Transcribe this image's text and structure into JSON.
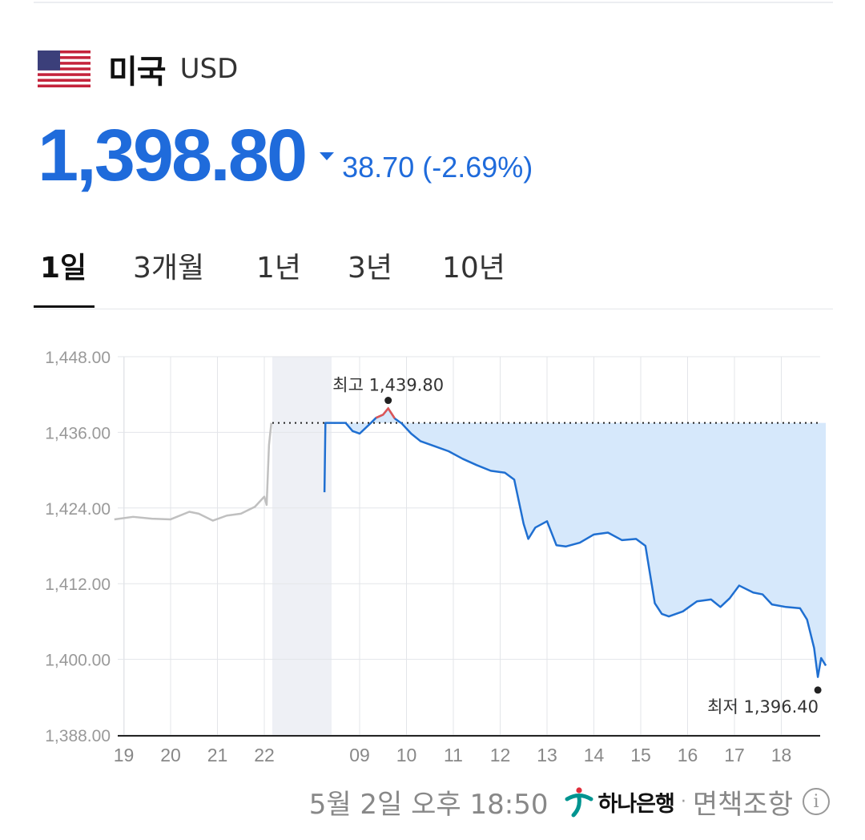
{
  "header": {
    "flag_icon": "us-flag-icon",
    "country": "미국",
    "code": "USD"
  },
  "quote": {
    "price": "1,398.80",
    "direction": "down",
    "change": "38.70 (-2.69%)",
    "color": "#1f6bdb"
  },
  "tabs": [
    {
      "label": "1일",
      "active": true
    },
    {
      "label": "3개월",
      "active": false
    },
    {
      "label": "1년",
      "active": false
    },
    {
      "label": "3년",
      "active": false
    },
    {
      "label": "10년",
      "active": false
    }
  ],
  "chart_data": {
    "type": "line",
    "ylim": [
      1388,
      1448
    ],
    "yticks": [
      "1,448.00",
      "1,436.00",
      "1,424.00",
      "1,412.00",
      "1,400.00",
      "1,388.00"
    ],
    "ytick_values": [
      1448,
      1436,
      1424,
      1412,
      1400,
      1388
    ],
    "xticks": [
      "19",
      "20",
      "21",
      "22",
      "09",
      "10",
      "11",
      "12",
      "13",
      "14",
      "15",
      "16",
      "17",
      "18"
    ],
    "xtick_hours": [
      -5,
      -4,
      -3,
      -2,
      9,
      10,
      11,
      12,
      13,
      14,
      15,
      16,
      17,
      18
    ],
    "night_icon": "moon-icon",
    "previous_close": 1437.5,
    "grid": true,
    "colors": {
      "today": "#1f6fd1",
      "previous": "#c0c0c0",
      "above_close": "#e05555",
      "fill": "#d6e8fb"
    },
    "annotations": {
      "high": {
        "label": "최고 1,439.80",
        "hour": 9.61,
        "value": 1439.8
      },
      "low": {
        "label": "최저 1,396.40",
        "hour": 18.78,
        "value": 1396.4
      }
    },
    "series": [
      {
        "x": [
          -5.2,
          -4.8,
          -4.4,
          -4.0,
          -3.6,
          -3.4,
          -3.1,
          -2.8,
          -2.5,
          -2.2,
          -2.0,
          -1.95,
          -1.9,
          -1.85
        ],
        "y": [
          1422.2,
          1422.6,
          1422.3,
          1422.2,
          1423.4,
          1423.1,
          1422.0,
          1422.8,
          1423.1,
          1424.2,
          1425.8,
          1424.5,
          1434.0,
          1437.5
        ]
      },
      {
        "x": [
          8.25,
          8.27,
          8.5,
          8.7,
          8.85,
          9.0,
          9.2,
          9.35,
          9.5,
          9.61,
          9.75,
          9.9,
          10.1,
          10.3,
          10.6,
          10.9,
          11.2,
          11.5,
          11.8,
          12.1,
          12.3,
          12.5,
          12.6,
          12.75,
          13.0,
          13.2,
          13.4,
          13.7,
          14.0,
          14.3,
          14.6,
          14.9,
          15.1,
          15.3,
          15.45,
          15.6,
          15.9,
          16.2,
          16.5,
          16.7,
          16.9,
          17.1,
          17.4,
          17.6,
          17.8,
          18.1,
          18.4,
          18.55,
          18.7,
          18.78,
          18.85,
          18.95
        ],
        "y": [
          1426.5,
          1437.5,
          1437.5,
          1437.5,
          1436.2,
          1435.8,
          1437.2,
          1438.3,
          1438.8,
          1439.8,
          1438.2,
          1437.4,
          1435.8,
          1434.6,
          1433.8,
          1433.0,
          1431.8,
          1430.8,
          1429.9,
          1429.6,
          1428.5,
          1421.5,
          1419.1,
          1420.9,
          1421.9,
          1418.1,
          1417.9,
          1418.5,
          1419.8,
          1420.1,
          1418.9,
          1419.1,
          1418.0,
          1408.9,
          1407.2,
          1406.8,
          1407.6,
          1409.2,
          1409.5,
          1408.3,
          1409.7,
          1411.7,
          1410.6,
          1410.3,
          1408.7,
          1408.3,
          1408.1,
          1406.3,
          1401.8,
          1397.2,
          1400.2,
          1399.0
        ]
      }
    ]
  },
  "footer": {
    "timestamp": "5월 2일 오후 18:50",
    "bank_icon": "hana-bank-logo-icon",
    "bank": "하나은행",
    "separator": "·",
    "disclaimer": "면책조항",
    "info_icon": "info-icon"
  }
}
